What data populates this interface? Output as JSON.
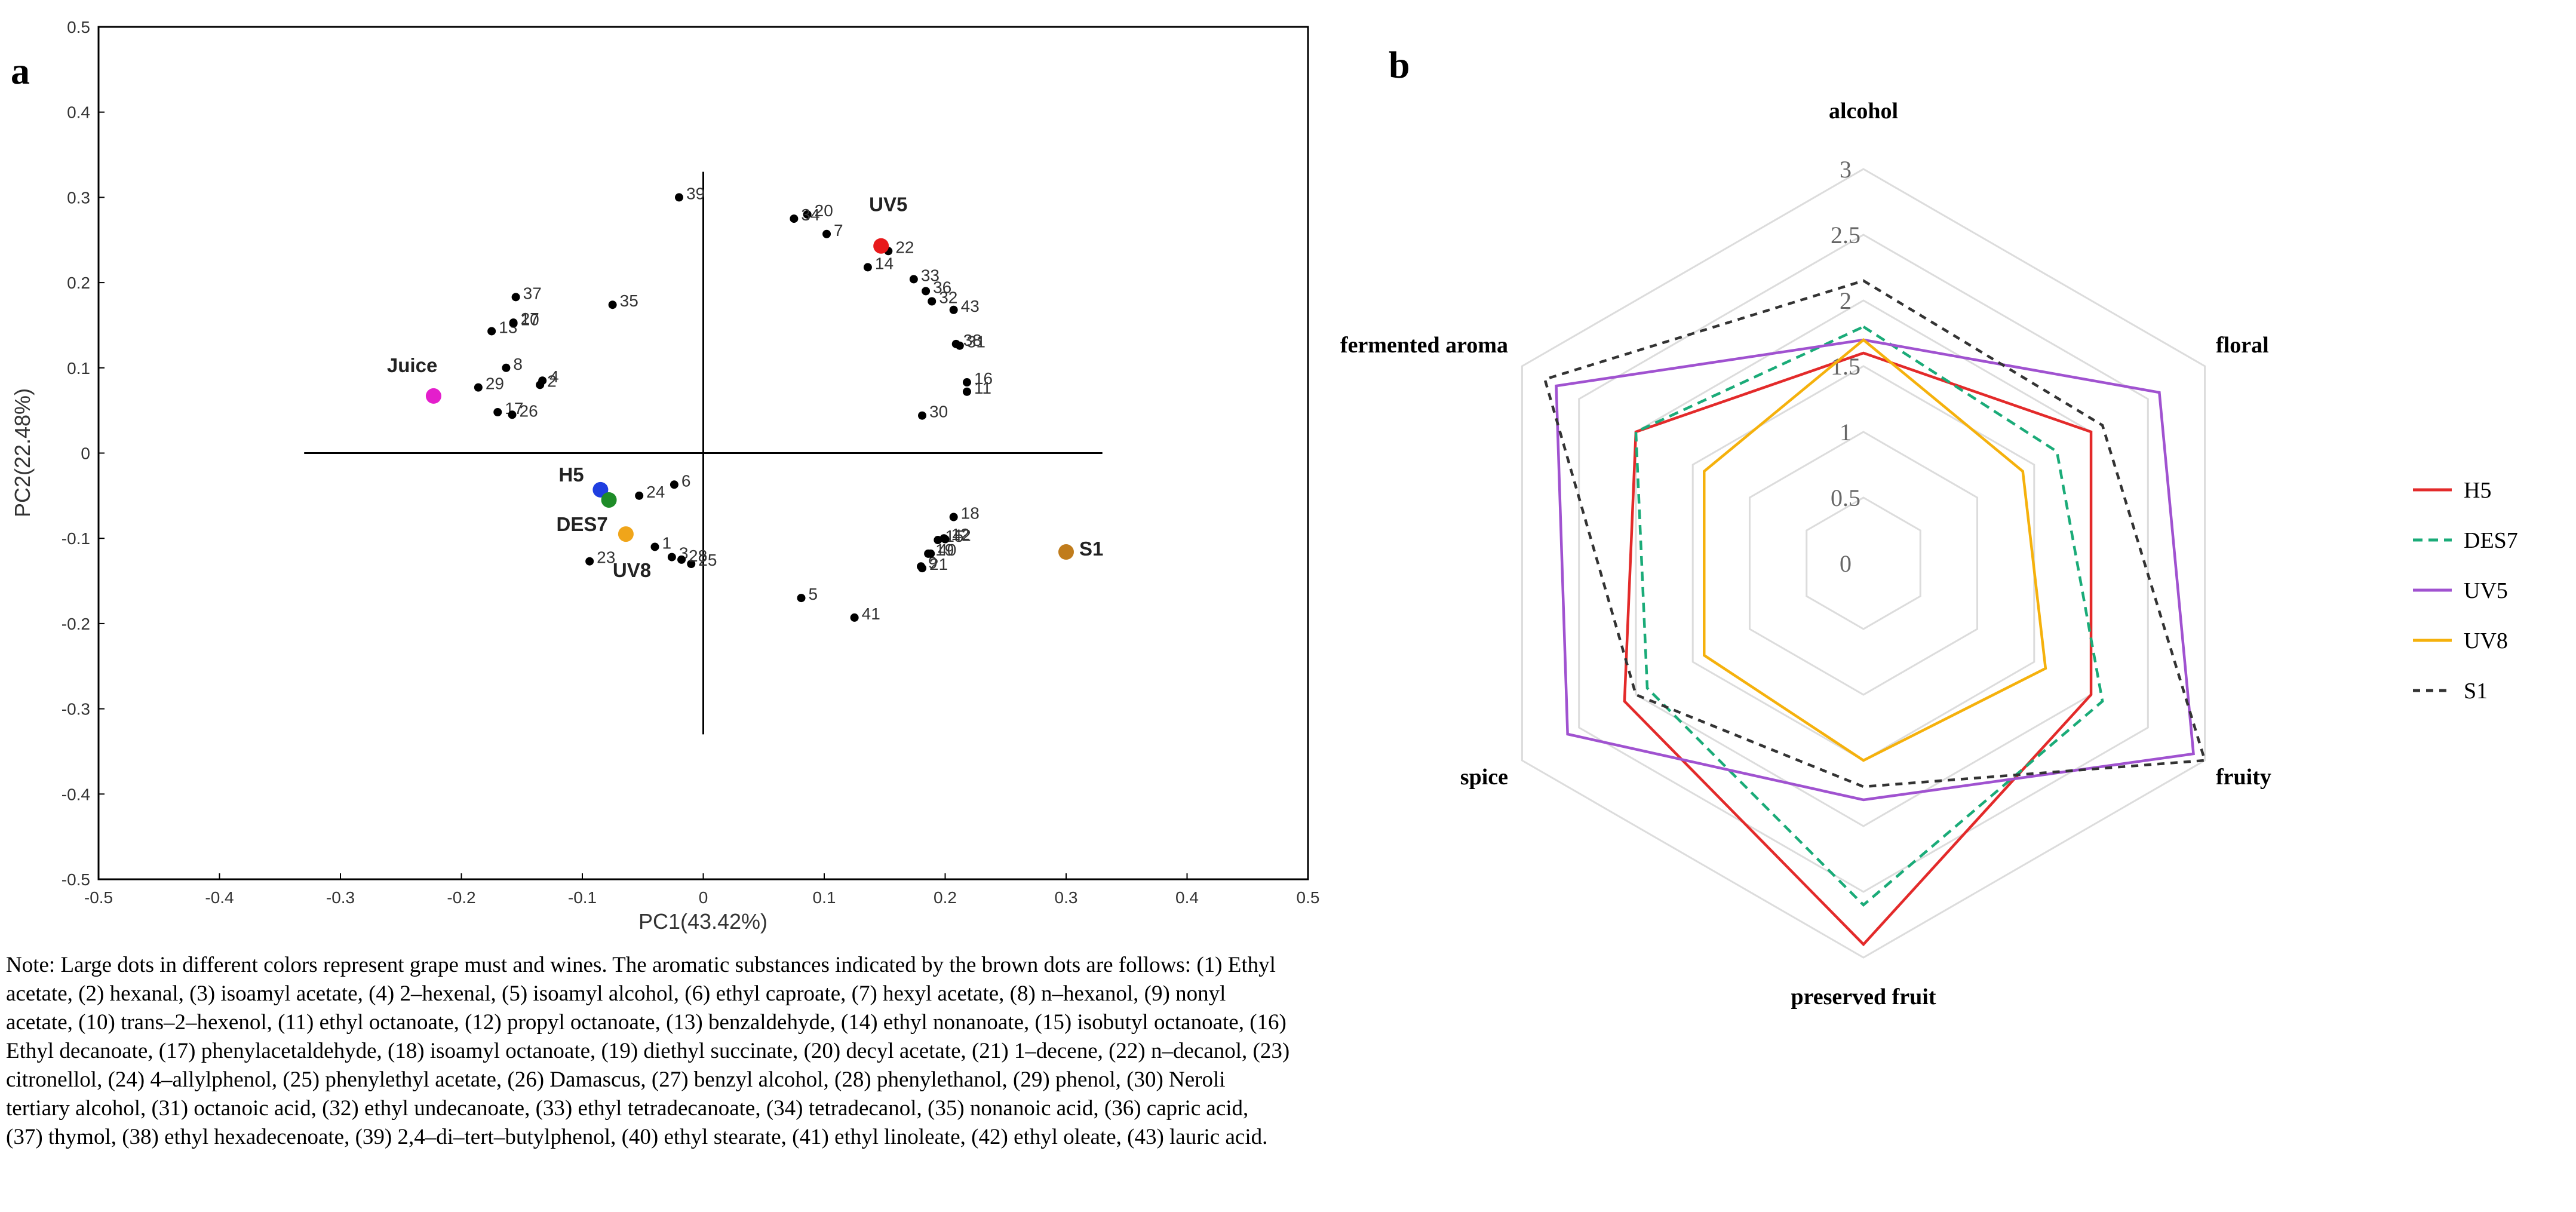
{
  "panel_a_label": "a",
  "panel_b_label": "b",
  "note": "Note: Large dots in different colors represent grape must and wines. The aromatic substances indicated by the brown dots are follows: (1) Ethyl acetate, (2) hexanal, (3) isoamyl acetate, (4) 2–hexenal, (5) isoamyl alcohol, (6) ethyl caproate, (7) hexyl acetate, (8) n–hexanol, (9) nonyl acetate, (10) trans–2–hexenol, (11) ethyl octanoate, (12) propyl octanoate, (13) benzaldehyde, (14) ethyl nonanoate, (15) isobutyl octanoate, (16) Ethyl decanoate, (17) phenylacetaldehyde, (18) isoamyl octanoate, (19) diethyl succinate, (20) decyl acetate, (21) 1–decene, (22) n–decanol, (23) citronellol, (24) 4–allylphenol, (25) phenylethyl acetate, (26) Damascus, (27) benzyl alcohol, (28) phenylethanol, (29) phenol, (30) Neroli tertiary alcohol, (31) octanoic acid, (32) ethyl undecanoate, (33) ethyl tetradecanoate, (34) tetradecanol, (35) nonanoic acid, (36) capric acid, (37) thymol, (38) ethyl hexadecenoate, (39) 2,4–di–tert–butylphenol, (40) ethyl stearate, (41) ethyl linoleate, (42) ethyl oleate, (43) lauric acid.",
  "chart_data": [
    {
      "type": "scatter",
      "title": "",
      "xlabel": "PC1(43.42%)",
      "ylabel": "PC2(22.48%)",
      "xlim": [
        -0.5,
        0.5
      ],
      "ylim": [
        -0.5,
        0.5
      ],
      "xticks": [
        -0.5,
        -0.4,
        -0.3,
        -0.2,
        -0.1,
        0,
        0.1,
        0.2,
        0.3,
        0.4,
        0.5
      ],
      "yticks": [
        -0.5,
        -0.4,
        -0.3,
        -0.2,
        -0.1,
        0,
        0.1,
        0.2,
        0.3,
        0.4,
        0.5
      ],
      "tick_labels_x": [
        "-0.5",
        "-0.4",
        "-0.3",
        "-0.2",
        "-0.1",
        "0",
        "0.1",
        "0.2",
        "0.3",
        "0.4",
        "0.5"
      ],
      "tick_labels_y": [
        "-0.5",
        "-0.4",
        "-0.3",
        "-0.2",
        "-0.1",
        "0",
        "0.1",
        "0.2",
        "0.3",
        "0.4",
        "0.5"
      ],
      "center_cross": {
        "x_extent": [
          -0.33,
          0.33
        ],
        "y_extent": [
          -0.33,
          0.33
        ]
      },
      "samples": [
        {
          "name": "UV5",
          "x": 0.147,
          "y": 0.243,
          "color": "#e8191b"
        },
        {
          "name": "Juice",
          "x": -0.223,
          "y": 0.067,
          "color": "#e41ecc"
        },
        {
          "name": "H5",
          "x": -0.085,
          "y": -0.043,
          "color": "#1f3ee0"
        },
        {
          "name": "DES7",
          "x": -0.078,
          "y": -0.055,
          "color": "#1e8c28"
        },
        {
          "name": "UV8",
          "x": -0.064,
          "y": -0.095,
          "color": "#f0a51a"
        },
        {
          "name": "S1",
          "x": 0.3,
          "y": -0.116,
          "color": "#c07c1c"
        }
      ],
      "compounds": [
        {
          "label": "1",
          "x": -0.04,
          "y": -0.11
        },
        {
          "label": "2",
          "x": -0.135,
          "y": 0.08
        },
        {
          "label": "3",
          "x": -0.026,
          "y": -0.122
        },
        {
          "label": "4",
          "x": -0.133,
          "y": 0.085
        },
        {
          "label": "5",
          "x": 0.081,
          "y": -0.17
        },
        {
          "label": "6",
          "x": -0.024,
          "y": -0.037
        },
        {
          "label": "7",
          "x": 0.102,
          "y": 0.257
        },
        {
          "label": "8",
          "x": -0.163,
          "y": 0.1
        },
        {
          "label": "9",
          "x": 0.18,
          "y": -0.133
        },
        {
          "label": "10",
          "x": -0.157,
          "y": 0.152
        },
        {
          "label": "11",
          "x": 0.218,
          "y": 0.072
        },
        {
          "label": "12",
          "x": 0.199,
          "y": -0.1
        },
        {
          "label": "13",
          "x": -0.175,
          "y": 0.143
        },
        {
          "label": "14",
          "x": 0.136,
          "y": 0.218
        },
        {
          "label": "15",
          "x": 0.194,
          "y": -0.102
        },
        {
          "label": "16",
          "x": 0.218,
          "y": 0.083
        },
        {
          "label": "17",
          "x": -0.17,
          "y": 0.048
        },
        {
          "label": "18",
          "x": 0.207,
          "y": -0.075
        },
        {
          "label": "19",
          "x": 0.186,
          "y": -0.118
        },
        {
          "label": "20",
          "x": 0.086,
          "y": 0.28
        },
        {
          "label": "21",
          "x": 0.181,
          "y": -0.135
        },
        {
          "label": "22",
          "x": 0.153,
          "y": 0.237
        },
        {
          "label": "23",
          "x": -0.094,
          "y": -0.127
        },
        {
          "label": "24",
          "x": -0.053,
          "y": -0.05
        },
        {
          "label": "25",
          "x": -0.01,
          "y": -0.13
        },
        {
          "label": "26",
          "x": -0.158,
          "y": 0.045
        },
        {
          "label": "27",
          "x": -0.157,
          "y": 0.153
        },
        {
          "label": "28",
          "x": -0.018,
          "y": -0.125
        },
        {
          "label": "29",
          "x": -0.186,
          "y": 0.077
        },
        {
          "label": "30",
          "x": 0.181,
          "y": 0.044
        },
        {
          "label": "31",
          "x": 0.212,
          "y": 0.126
        },
        {
          "label": "32",
          "x": 0.189,
          "y": 0.178
        },
        {
          "label": "33",
          "x": 0.174,
          "y": 0.204
        },
        {
          "label": "34",
          "x": 0.075,
          "y": 0.275
        },
        {
          "label": "35",
          "x": -0.075,
          "y": 0.174
        },
        {
          "label": "36",
          "x": 0.184,
          "y": 0.19
        },
        {
          "label": "37",
          "x": -0.155,
          "y": 0.183
        },
        {
          "label": "38",
          "x": 0.209,
          "y": 0.128
        },
        {
          "label": "39",
          "x": -0.02,
          "y": 0.3
        },
        {
          "label": "40",
          "x": 0.188,
          "y": -0.118
        },
        {
          "label": "41",
          "x": 0.125,
          "y": -0.193
        },
        {
          "label": "42",
          "x": 0.2,
          "y": -0.101
        },
        {
          "label": "43",
          "x": 0.207,
          "y": 0.168
        }
      ]
    },
    {
      "type": "radar",
      "axes": [
        "alcohol",
        "floral",
        "fruity",
        "preserved fruit",
        "spice",
        "fermented aroma"
      ],
      "rmax": 3,
      "rticks": [
        0,
        0.5,
        1,
        1.5,
        2,
        2.5,
        3
      ],
      "rtick_labels": [
        "0",
        "0.5",
        "1",
        "1.5",
        "2",
        "2.5",
        "3"
      ],
      "series": [
        {
          "name": "H5",
          "color": "#e32a2a",
          "dash": "none",
          "values": [
            1.6,
            2.0,
            2.0,
            2.9,
            2.1,
            2.0
          ]
        },
        {
          "name": "DES7",
          "color": "#1aab78",
          "dash": "16,10",
          "values": [
            1.8,
            1.7,
            2.1,
            2.6,
            1.9,
            2.0
          ]
        },
        {
          "name": "UV5",
          "color": "#a052d0",
          "dash": "none",
          "values": [
            1.7,
            2.6,
            2.9,
            1.8,
            2.6,
            2.7
          ]
        },
        {
          "name": "UV8",
          "color": "#f5b10c",
          "dash": "none",
          "values": [
            1.7,
            1.4,
            1.6,
            1.5,
            1.4,
            1.4
          ]
        },
        {
          "name": "S1",
          "color": "#333333",
          "dash": "12,10",
          "values": [
            2.15,
            2.1,
            3.0,
            1.7,
            2.0,
            2.8
          ]
        }
      ]
    }
  ]
}
